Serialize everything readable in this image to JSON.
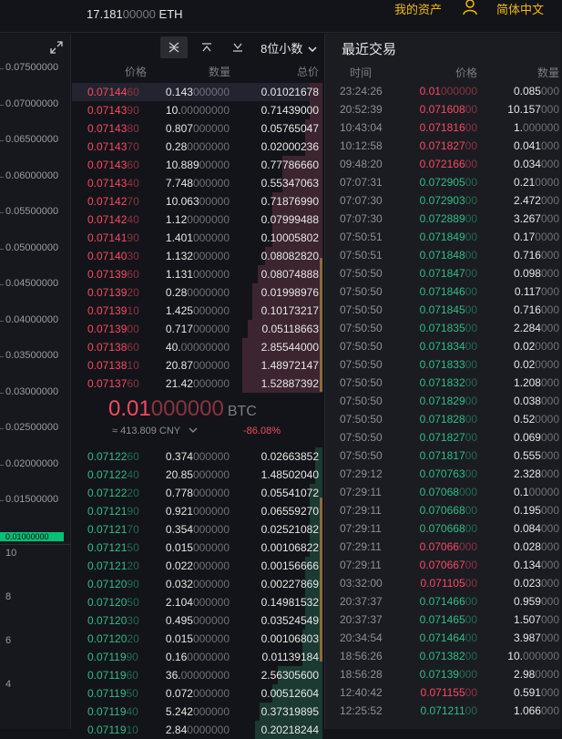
{
  "header": {
    "balance_strong": "17.181",
    "balance_dim": "00000",
    "balance_unit": "ETH",
    "assets_label": "我的资产",
    "user_icon": "user-icon",
    "language_label": "简体中文"
  },
  "chart": {
    "expand_icon": "expand-icon",
    "price_axis": [
      "0.07500000",
      "0.07000000",
      "0.06500000",
      "0.06000000",
      "0.05500000",
      "0.05000000",
      "0.04500000",
      "0.04000000",
      "0.03500000",
      "0.03000000",
      "0.02500000",
      "0.02000000",
      "0.01500000"
    ],
    "current_price_marker": "0.01000000",
    "volume_axis": [
      "10",
      "8",
      "6",
      "4"
    ]
  },
  "orderbook": {
    "toolbar": {
      "both_icon": "orderbook-both-icon",
      "asks_icon": "orderbook-asks-icon",
      "bids_icon": "orderbook-bids-icon",
      "decimals_label": "8位小数",
      "decimals_icon": "chevron-down-icon"
    },
    "headers": {
      "price": "价格",
      "amount": "数量",
      "total": "总价"
    },
    "asks": [
      {
        "price_s": "0.07144",
        "price_w": "60",
        "amt_s": "0.143",
        "amt_w": "000000",
        "total": "0.01021678",
        "depth": 0.05
      },
      {
        "price_s": "0.07143",
        "price_w": "90",
        "amt_s": "10.",
        "amt_w": "00000000",
        "total": "0.71439000",
        "depth": 0.05
      },
      {
        "price_s": "0.07143",
        "price_w": "80",
        "amt_s": "0.807",
        "amt_w": "000000",
        "total": "0.05765047",
        "depth": 0.07
      },
      {
        "price_s": "0.07143",
        "price_w": "70",
        "amt_s": "0.28",
        "amt_w": "0000000",
        "total": "0.02000236",
        "depth": 0.07
      },
      {
        "price_s": "0.07143",
        "price_w": "60",
        "amt_s": "10.889",
        "amt_w": "00000",
        "total": "0.77786660",
        "depth": 0.16
      },
      {
        "price_s": "0.07143",
        "price_w": "40",
        "amt_s": "7.748",
        "amt_w": "000000",
        "total": "0.55347063",
        "depth": 0.16
      },
      {
        "price_s": "0.07142",
        "price_w": "70",
        "amt_s": "10.063",
        "amt_w": "00000",
        "total": "0.71876990",
        "depth": 0.2
      },
      {
        "price_s": "0.07142",
        "price_w": "40",
        "amt_s": "1.12",
        "amt_w": "0000000",
        "total": "0.07999488",
        "depth": 0.2
      },
      {
        "price_s": "0.07141",
        "price_w": "90",
        "amt_s": "1.401",
        "amt_w": "000000",
        "total": "0.10005802",
        "depth": 0.2
      },
      {
        "price_s": "0.07140",
        "price_w": "30",
        "amt_s": "1.132",
        "amt_w": "000000",
        "total": "0.08082820",
        "depth": 0.23
      },
      {
        "price_s": "0.07139",
        "price_w": "60",
        "amt_s": "1.131",
        "amt_w": "000000",
        "total": "0.08074888",
        "depth": 0.26
      },
      {
        "price_s": "0.07139",
        "price_w": "20",
        "amt_s": "0.28",
        "amt_w": "0000000",
        "total": "0.01998976",
        "depth": 0.28
      },
      {
        "price_s": "0.07139",
        "price_w": "10",
        "amt_s": "1.425",
        "amt_w": "000000",
        "total": "0.10173217",
        "depth": 0.28
      },
      {
        "price_s": "0.07139",
        "price_w": "00",
        "amt_s": "0.717",
        "amt_w": "000000",
        "total": "0.05118663",
        "depth": 0.3
      },
      {
        "price_s": "0.07138",
        "price_w": "60",
        "amt_s": "40.",
        "amt_w": "00000000",
        "total": "2.85544000",
        "depth": 0.32
      },
      {
        "price_s": "0.07138",
        "price_w": "10",
        "amt_s": "20.87",
        "amt_w": "000000",
        "total": "1.48972147",
        "depth": 0.32
      },
      {
        "price_s": "0.07137",
        "price_w": "60",
        "amt_s": "21.42",
        "amt_w": "000000",
        "total": "1.52887392",
        "depth": 0.32
      }
    ],
    "mid": {
      "price_strong": "0.01",
      "price_dim": "000000",
      "price_unit": "BTC",
      "cny": "≈ 413.809 CNY",
      "cny_icon": "chevron-down-icon",
      "change": "-86.08%"
    },
    "bids": [
      {
        "price_s": "0.07122",
        "price_w": "60",
        "amt_s": "0.374",
        "amt_w": "000000",
        "total": "0.02663852",
        "depth": 0.03
      },
      {
        "price_s": "0.07122",
        "price_w": "40",
        "amt_s": "20.85",
        "amt_w": "000000",
        "total": "1.48502040",
        "depth": 0.03
      },
      {
        "price_s": "0.07122",
        "price_w": "20",
        "amt_s": "0.778",
        "amt_w": "000000",
        "total": "0.05541072",
        "depth": 0.05
      },
      {
        "price_s": "0.07121",
        "price_w": "90",
        "amt_s": "0.921",
        "amt_w": "000000",
        "total": "0.06559270",
        "depth": 0.05
      },
      {
        "price_s": "0.07121",
        "price_w": "70",
        "amt_s": "0.354",
        "amt_w": "000000",
        "total": "0.02521082",
        "depth": 0.05
      },
      {
        "price_s": "0.07121",
        "price_w": "50",
        "amt_s": "0.015",
        "amt_w": "000000",
        "total": "0.00106822",
        "depth": 0.05
      },
      {
        "price_s": "0.07121",
        "price_w": "20",
        "amt_s": "0.022",
        "amt_w": "000000",
        "total": "0.00156666",
        "depth": 0.07
      },
      {
        "price_s": "0.07120",
        "price_w": "90",
        "amt_s": "0.032",
        "amt_w": "000000",
        "total": "0.00227869",
        "depth": 0.07
      },
      {
        "price_s": "0.07120",
        "price_w": "50",
        "amt_s": "2.104",
        "amt_w": "000000",
        "total": "0.14981532",
        "depth": 0.07
      },
      {
        "price_s": "0.07120",
        "price_w": "30",
        "amt_s": "0.495",
        "amt_w": "000000",
        "total": "0.03524549",
        "depth": 0.07
      },
      {
        "price_s": "0.07120",
        "price_w": "20",
        "amt_s": "0.015",
        "amt_w": "000000",
        "total": "0.00106803",
        "depth": 0.08
      },
      {
        "price_s": "0.07119",
        "price_w": "90",
        "amt_s": "0.16",
        "amt_w": "0000000",
        "total": "0.01139184",
        "depth": 0.08
      },
      {
        "price_s": "0.07119",
        "price_w": "60",
        "amt_s": "36.",
        "amt_w": "00000000",
        "total": "2.56305600",
        "depth": 0.18
      },
      {
        "price_s": "0.07119",
        "price_w": "50",
        "amt_s": "0.072",
        "amt_w": "000000",
        "total": "0.00512604",
        "depth": 0.2
      },
      {
        "price_s": "0.07119",
        "price_w": "40",
        "amt_s": "5.242",
        "amt_w": "000000",
        "total": "0.37319895",
        "depth": 0.25
      },
      {
        "price_s": "0.07119",
        "price_w": "10",
        "amt_s": "2.84",
        "amt_w": "0000000",
        "total": "0.20218244",
        "depth": 0.27
      }
    ]
  },
  "trades": {
    "title": "最近交易",
    "headers": {
      "time": "时间",
      "price": "价格",
      "amount": "数量"
    },
    "rows": [
      {
        "time": "23:24:26",
        "side": "sell",
        "price_s": "0.01",
        "price_w": "000000",
        "amt_s": "0.085",
        "amt_w": "000"
      },
      {
        "time": "20:52:39",
        "side": "sell",
        "price_s": "0.071608",
        "price_w": "00",
        "amt_s": "10.157",
        "amt_w": "000"
      },
      {
        "time": "10:43:04",
        "side": "sell",
        "price_s": "0.071816",
        "price_w": "00",
        "amt_s": "1.",
        "amt_w": "000000"
      },
      {
        "time": "10:12:58",
        "side": "sell",
        "price_s": "0.071827",
        "price_w": "00",
        "amt_s": "0.041",
        "amt_w": "000"
      },
      {
        "time": "09:48:20",
        "side": "sell",
        "price_s": "0.072166",
        "price_w": "00",
        "amt_s": "0.034",
        "amt_w": "000"
      },
      {
        "time": "07:07:31",
        "side": "buy",
        "price_s": "0.072905",
        "price_w": "00",
        "amt_s": "0.21",
        "amt_w": "0000"
      },
      {
        "time": "07:07:30",
        "side": "buy",
        "price_s": "0.072903",
        "price_w": "00",
        "amt_s": "2.472",
        "amt_w": "000"
      },
      {
        "time": "07:07:30",
        "side": "buy",
        "price_s": "0.072889",
        "price_w": "00",
        "amt_s": "3.267",
        "amt_w": "000"
      },
      {
        "time": "07:50:51",
        "side": "buy",
        "price_s": "0.071849",
        "price_w": "00",
        "amt_s": "0.17",
        "amt_w": "0000"
      },
      {
        "time": "07:50:51",
        "side": "buy",
        "price_s": "0.071848",
        "price_w": "00",
        "amt_s": "0.716",
        "amt_w": "000"
      },
      {
        "time": "07:50:50",
        "side": "buy",
        "price_s": "0.071847",
        "price_w": "00",
        "amt_s": "0.098",
        "amt_w": "000"
      },
      {
        "time": "07:50:50",
        "side": "buy",
        "price_s": "0.071846",
        "price_w": "00",
        "amt_s": "0.117",
        "amt_w": "000"
      },
      {
        "time": "07:50:50",
        "side": "buy",
        "price_s": "0.071845",
        "price_w": "00",
        "amt_s": "0.716",
        "amt_w": "000"
      },
      {
        "time": "07:50:50",
        "side": "buy",
        "price_s": "0.071835",
        "price_w": "00",
        "amt_s": "2.284",
        "amt_w": "000"
      },
      {
        "time": "07:50:50",
        "side": "buy",
        "price_s": "0.071834",
        "price_w": "00",
        "amt_s": "0.02",
        "amt_w": "0000"
      },
      {
        "time": "07:50:50",
        "side": "buy",
        "price_s": "0.071833",
        "price_w": "00",
        "amt_s": "0.02",
        "amt_w": "0000"
      },
      {
        "time": "07:50:50",
        "side": "buy",
        "price_s": "0.071832",
        "price_w": "00",
        "amt_s": "1.208",
        "amt_w": "000"
      },
      {
        "time": "07:50:50",
        "side": "buy",
        "price_s": "0.071829",
        "price_w": "00",
        "amt_s": "0.038",
        "amt_w": "000"
      },
      {
        "time": "07:50:50",
        "side": "buy",
        "price_s": "0.071828",
        "price_w": "00",
        "amt_s": "0.52",
        "amt_w": "0000"
      },
      {
        "time": "07:50:50",
        "side": "buy",
        "price_s": "0.071827",
        "price_w": "00",
        "amt_s": "0.069",
        "amt_w": "000"
      },
      {
        "time": "07:50:50",
        "side": "buy",
        "price_s": "0.071817",
        "price_w": "00",
        "amt_s": "0.555",
        "amt_w": "000"
      },
      {
        "time": "07:29:12",
        "side": "buy",
        "price_s": "0.070763",
        "price_w": "00",
        "amt_s": "2.328",
        "amt_w": "000"
      },
      {
        "time": "07:29:11",
        "side": "buy",
        "price_s": "0.07068",
        "price_w": "000",
        "amt_s": "0.1",
        "amt_w": "00000"
      },
      {
        "time": "07:29:11",
        "side": "buy",
        "price_s": "0.070668",
        "price_w": "00",
        "amt_s": "0.195",
        "amt_w": "000"
      },
      {
        "time": "07:29:11",
        "side": "buy",
        "price_s": "0.070668",
        "price_w": "00",
        "amt_s": "0.084",
        "amt_w": "000"
      },
      {
        "time": "07:29:11",
        "side": "sell",
        "price_s": "0.07066",
        "price_w": "000",
        "amt_s": "0.028",
        "amt_w": "000"
      },
      {
        "time": "07:29:11",
        "side": "sell",
        "price_s": "0.070667",
        "price_w": "00",
        "amt_s": "0.134",
        "amt_w": "000"
      },
      {
        "time": "03:32:00",
        "side": "sell",
        "price_s": "0.071105",
        "price_w": "00",
        "amt_s": "0.023",
        "amt_w": "000"
      },
      {
        "time": "20:37:37",
        "side": "buy",
        "price_s": "0.071466",
        "price_w": "00",
        "amt_s": "0.959",
        "amt_w": "000"
      },
      {
        "time": "20:37:37",
        "side": "buy",
        "price_s": "0.071465",
        "price_w": "00",
        "amt_s": "1.507",
        "amt_w": "000"
      },
      {
        "time": "20:34:54",
        "side": "buy",
        "price_s": "0.071464",
        "price_w": "00",
        "amt_s": "3.987",
        "amt_w": "000"
      },
      {
        "time": "18:56:26",
        "side": "buy",
        "price_s": "0.071382",
        "price_w": "00",
        "amt_s": "10.",
        "amt_w": "000000"
      },
      {
        "time": "18:56:28",
        "side": "buy",
        "price_s": "0.07139",
        "price_w": "000",
        "amt_s": "2.98",
        "amt_w": "0000"
      },
      {
        "time": "12:40:42",
        "side": "sell",
        "price_s": "0.071155",
        "price_w": "00",
        "amt_s": "0.591",
        "amt_w": "000"
      },
      {
        "time": "12:25:52",
        "side": "buy",
        "price_s": "0.071211",
        "price_w": "00",
        "amt_s": "1.066",
        "amt_w": "000"
      }
    ]
  }
}
